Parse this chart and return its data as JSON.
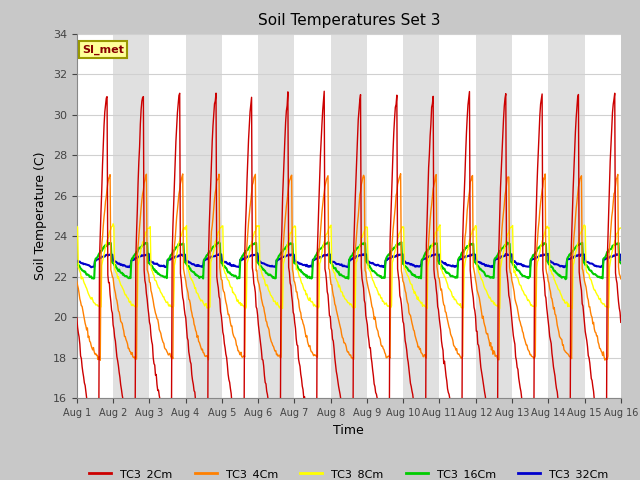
{
  "title": "Soil Temperatures Set 3",
  "xlabel": "Time",
  "ylabel": "Soil Temperature (C)",
  "ylim": [
    16,
    34
  ],
  "yticks": [
    16,
    18,
    20,
    22,
    24,
    26,
    28,
    30,
    32,
    34
  ],
  "xtick_labels": [
    "Aug 1",
    "Aug 2",
    "Aug 3",
    "Aug 4",
    "Aug 5",
    "Aug 6",
    "Aug 7",
    "Aug 8",
    "Aug 9",
    "Aug 10",
    "Aug 11",
    "Aug 12",
    "Aug 13",
    "Aug 14",
    "Aug 15",
    "Aug 16"
  ],
  "legend_label": "SI_met",
  "series_colors": {
    "TC3_2Cm": "#cc0000",
    "TC3_4Cm": "#ff8000",
    "TC3_8Cm": "#ffff00",
    "TC3_16Cm": "#00cc00",
    "TC3_32Cm": "#0000cc"
  },
  "band_colors": [
    "#ffffff",
    "#e0e0e0"
  ],
  "fig_bg": "#c8c8c8",
  "plot_bg": "#ffffff",
  "grid_color": "#d0d0d0",
  "mean_temp": 22.5,
  "amp_2": 8.5,
  "amp_4": 4.5,
  "amp_8": 2.0,
  "amp_16": 0.85,
  "amp_32": 0.3,
  "peak_skew": 0.25
}
